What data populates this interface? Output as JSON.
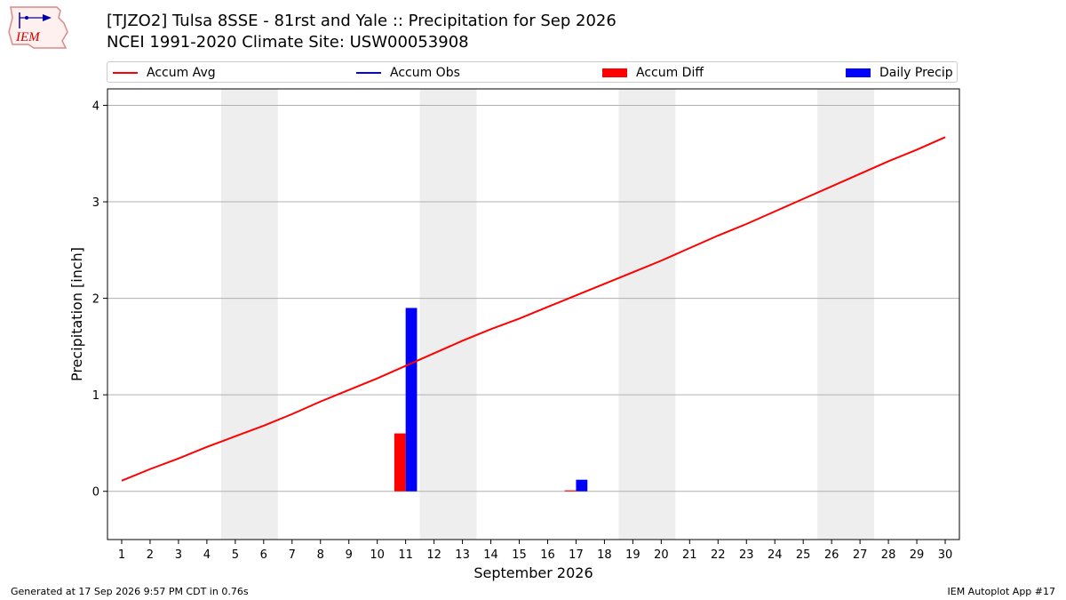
{
  "header": {
    "logo_text": "IEM",
    "title_line1": "[TJZO2] Tulsa 8SSE - 81rst and Yale :: Precipitation for Sep 2026",
    "title_line2": "NCEI 1991-2020 Climate Site: USW00053908"
  },
  "legend": {
    "items": [
      {
        "label": "Accum Avg",
        "kind": "line",
        "color": "#ff0000"
      },
      {
        "label": "Accum Obs",
        "kind": "line",
        "color": "#0000ff"
      },
      {
        "label": "Accum Diff",
        "kind": "box",
        "color": "#ff0000"
      },
      {
        "label": "Daily Precip",
        "kind": "box",
        "color": "#0000ff"
      }
    ]
  },
  "chart_data": {
    "type": "bar",
    "xlabel": "September 2026",
    "ylabel": "Precipitation [inch]",
    "xlim": [
      0.5,
      30.5
    ],
    "ylim": [
      -0.5,
      4.17
    ],
    "yticks": [
      0,
      1,
      2,
      3,
      4
    ],
    "xticks": [
      1,
      2,
      3,
      4,
      5,
      6,
      7,
      8,
      9,
      10,
      11,
      12,
      13,
      14,
      15,
      16,
      17,
      18,
      19,
      20,
      21,
      22,
      23,
      24,
      25,
      26,
      27,
      28,
      29,
      30
    ],
    "grid": "horizontal",
    "weekend_shading": [
      [
        4.5,
        6.5
      ],
      [
        11.5,
        13.5
      ],
      [
        18.5,
        20.5
      ],
      [
        25.5,
        27.5
      ]
    ],
    "series": [
      {
        "name": "Accum Avg",
        "type": "line",
        "color": "#ff0000",
        "x": [
          1,
          2,
          3,
          4,
          5,
          6,
          7,
          8,
          9,
          10,
          11,
          12,
          13,
          14,
          15,
          16,
          17,
          18,
          19,
          20,
          21,
          22,
          23,
          24,
          25,
          26,
          27,
          28,
          29,
          30
        ],
        "values": [
          0.11,
          0.23,
          0.34,
          0.46,
          0.57,
          0.68,
          0.8,
          0.93,
          1.05,
          1.17,
          1.3,
          1.43,
          1.56,
          1.68,
          1.79,
          1.91,
          2.03,
          2.15,
          2.27,
          2.39,
          2.52,
          2.65,
          2.77,
          2.9,
          3.03,
          3.16,
          3.29,
          3.42,
          3.54,
          3.67
        ]
      },
      {
        "name": "Accum Diff",
        "type": "bar",
        "color": "#ff0000",
        "x": [
          11,
          17
        ],
        "values": [
          0.6,
          0.01
        ]
      },
      {
        "name": "Daily Precip",
        "type": "bar",
        "color": "#0000ff",
        "x": [
          11,
          17
        ],
        "values": [
          1.9,
          0.12
        ]
      }
    ]
  },
  "footer": {
    "left": "Generated at 17 Sep 2026 9:57 PM CDT in 0.76s",
    "right": "IEM Autoplot App #17"
  }
}
